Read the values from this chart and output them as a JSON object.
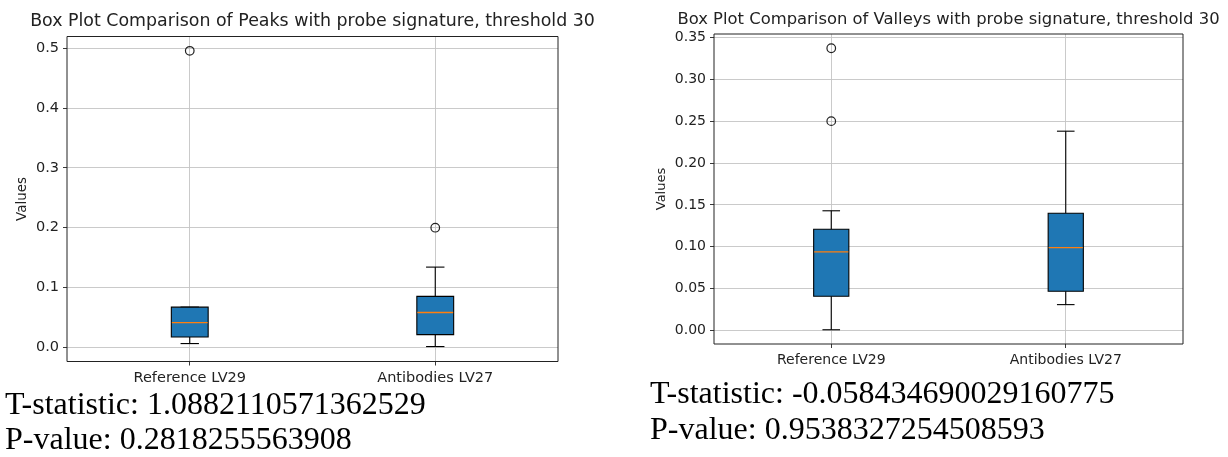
{
  "chart_data": [
    {
      "type": "box",
      "title": "Box Plot Comparison of Peaks with probe signature, threshold 30",
      "ylabel": "Values",
      "categories": [
        "Reference LV29",
        "Antibodies LV27"
      ],
      "color": "#1f77b4",
      "boxes": [
        {
          "low": 0.006,
          "q1": 0.017,
          "median": 0.041,
          "q3": 0.067,
          "high": 0.067,
          "outliers": [
            0.496
          ]
        },
        {
          "low": 0.001,
          "q1": 0.021,
          "median": 0.058,
          "q3": 0.085,
          "high": 0.134,
          "outliers": [
            0.2
          ]
        }
      ],
      "ylim": [
        -0.024,
        0.52
      ],
      "yticks": [
        {
          "value": 0,
          "label": "0.0"
        },
        0.1,
        0.2,
        0.3,
        0.4,
        0.5
      ],
      "grid": true,
      "annotations": [
        "T-statistic: 1.0882110571362529",
        "P-value: 0.2818255563908"
      ]
    },
    {
      "type": "box",
      "title": "Box Plot Comparison of Valleys with probe signature, threshold 30",
      "ylabel": "Values",
      "categories": [
        "Reference LV29",
        "Antibodies LV27"
      ],
      "color": "#1f77b4",
      "boxes": [
        {
          "low": 0.001,
          "q1": 0.041,
          "median": 0.094,
          "q3": 0.121,
          "high": 0.143,
          "outliers": [
            0.25,
            0.337
          ]
        },
        {
          "low": 0.031,
          "q1": 0.047,
          "median": 0.099,
          "q3": 0.14,
          "high": 0.238
        }
      ],
      "ylim": [
        -0.016,
        0.354
      ],
      "yticks": [
        {
          "value": 0,
          "label": "0.00"
        },
        0.05,
        {
          "value": 0.1,
          "label": "0.10"
        },
        0.15,
        {
          "value": 0.2,
          "label": "0.20"
        },
        0.25,
        {
          "value": 0.3,
          "label": "0.30"
        },
        0.35
      ],
      "grid": true,
      "annotations": [
        "T-statistic: -0.058434690029160775",
        "P-value: 0.9538327254508593"
      ]
    }
  ]
}
